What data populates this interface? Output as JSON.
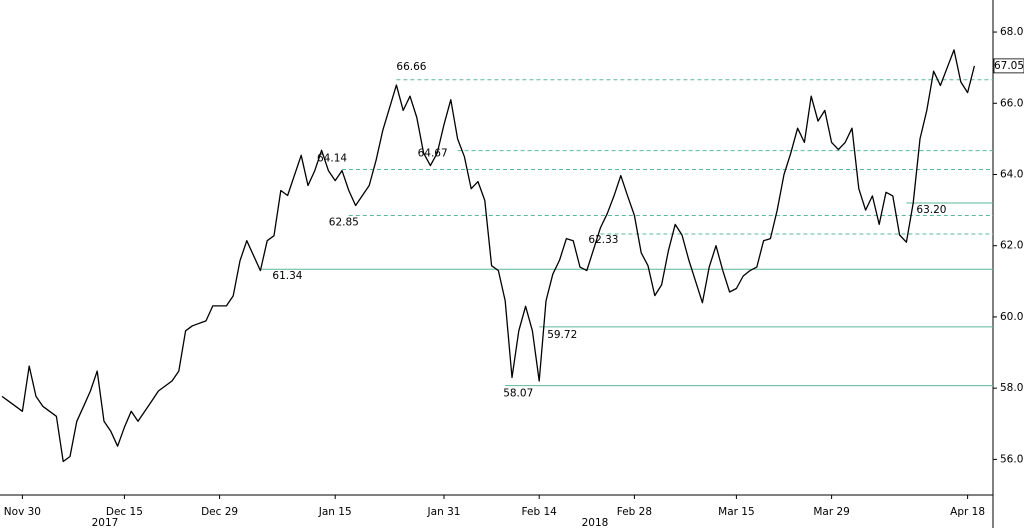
{
  "chart_data": {
    "type": "line",
    "color": "#000000",
    "level_color": "#5cb89a",
    "grid": false,
    "xlim": [
      "2017-11-27",
      "2018-04-21"
    ],
    "ylim": [
      55,
      68.9
    ],
    "xticks": [
      {
        "value": "2017-11-30",
        "label": "Nov 30"
      },
      {
        "value": "2017-12-15",
        "label": "Dec 15"
      },
      {
        "value": "2017-12-29",
        "label": "Dec 29"
      },
      {
        "value": "2018-01-15",
        "label": "Jan 15"
      },
      {
        "value": "2018-01-31",
        "label": "Jan 31"
      },
      {
        "value": "2018-02-14",
        "label": "Feb 14"
      },
      {
        "value": "2018-02-28",
        "label": "Feb 28"
      },
      {
        "value": "2018-03-15",
        "label": "Mar 15"
      },
      {
        "value": "2018-03-29",
        "label": "Mar 29"
      },
      {
        "value": "2018-04-18",
        "label": "Apr 18"
      }
    ],
    "x_year_labels": [
      "2017",
      "2018"
    ],
    "yticks": [
      {
        "value": 56,
        "label": "56.00"
      },
      {
        "value": 58,
        "label": "58.00"
      },
      {
        "value": 60,
        "label": "60.00"
      },
      {
        "value": 62,
        "label": "62.00"
      },
      {
        "value": 64,
        "label": "64.00"
      },
      {
        "value": 66,
        "label": "66.00"
      },
      {
        "value": 68,
        "label": "68.00"
      }
    ],
    "last_price": {
      "value": 67.05,
      "label": "67.05"
    },
    "levels": [
      {
        "value": 66.66,
        "start": "2018-01-24",
        "line_style": "dashed"
      },
      {
        "value": 64.67,
        "start": "2018-02-02",
        "line_style": "dashed"
      },
      {
        "value": 64.14,
        "start": "2018-01-16",
        "line_style": "dashed"
      },
      {
        "value": 62.85,
        "start": "2018-01-17",
        "line_style": "dashed"
      },
      {
        "value": 62.33,
        "start": "2018-02-23",
        "line_style": "dashed"
      },
      {
        "value": 63.2,
        "label": "63.20",
        "start": "2018-04-09",
        "line_style": "solid"
      },
      {
        "value": 61.34,
        "start": "2018-01-04",
        "line_style": "solid"
      },
      {
        "value": 59.72,
        "start": "2018-02-14",
        "line_style": "solid"
      },
      {
        "value": 58.07,
        "start": "2018-02-09",
        "line_style": "solid"
      }
    ],
    "x": [
      "2017-11-27",
      "2017-11-28",
      "2017-11-30",
      "2017-12-01",
      "2017-12-02",
      "2017-12-03",
      "2017-12-05",
      "2017-12-06",
      "2017-12-07",
      "2017-12-08",
      "2017-12-09",
      "2017-12-10",
      "2017-12-11",
      "2017-12-12",
      "2017-12-13",
      "2017-12-14",
      "2017-12-15",
      "2017-12-16",
      "2017-12-17",
      "2017-12-19",
      "2017-12-20",
      "2017-12-22",
      "2017-12-23",
      "2017-12-24",
      "2017-12-25",
      "2017-12-27",
      "2017-12-28",
      "2017-12-30",
      "2017-12-31",
      "2018-01-01",
      "2018-01-02",
      "2018-01-03",
      "2018-01-04",
      "2018-01-05",
      "2018-01-06",
      "2018-01-07",
      "2018-01-08",
      "2018-01-10",
      "2018-01-11",
      "2018-01-12",
      "2018-01-13",
      "2018-01-14",
      "2018-01-15",
      "2018-01-16",
      "2018-01-17",
      "2018-01-18",
      "2018-01-19",
      "2018-01-20",
      "2018-01-21",
      "2018-01-22",
      "2018-01-24",
      "2018-01-25",
      "2018-01-26",
      "2018-01-27",
      "2018-01-28",
      "2018-01-29",
      "2018-01-30",
      "2018-01-31",
      "2018-02-01",
      "2018-02-02",
      "2018-02-03",
      "2018-02-04",
      "2018-02-05",
      "2018-02-06",
      "2018-02-07",
      "2018-02-08",
      "2018-02-09",
      "2018-02-10",
      "2018-02-11",
      "2018-02-12",
      "2018-02-13",
      "2018-02-14",
      "2018-02-15",
      "2018-02-16",
      "2018-02-17",
      "2018-02-18",
      "2018-02-19",
      "2018-02-20",
      "2018-02-21",
      "2018-02-22",
      "2018-02-23",
      "2018-02-24",
      "2018-02-25",
      "2018-02-26",
      "2018-02-27",
      "2018-02-28",
      "2018-03-01",
      "2018-03-02",
      "2018-03-03",
      "2018-03-04",
      "2018-03-05",
      "2018-03-06",
      "2018-03-07",
      "2018-03-08",
      "2018-03-09",
      "2018-03-10",
      "2018-03-11",
      "2018-03-12",
      "2018-03-13",
      "2018-03-14",
      "2018-03-15",
      "2018-03-16",
      "2018-03-17",
      "2018-03-18",
      "2018-03-19",
      "2018-03-20",
      "2018-03-21",
      "2018-03-22",
      "2018-03-23",
      "2018-03-24",
      "2018-03-25",
      "2018-03-26",
      "2018-03-27",
      "2018-03-28",
      "2018-03-29",
      "2018-03-30",
      "2018-03-31",
      "2018-04-01",
      "2018-04-02",
      "2018-04-03",
      "2018-04-04",
      "2018-04-05",
      "2018-04-06",
      "2018-04-07",
      "2018-04-08",
      "2018-04-09",
      "2018-04-10",
      "2018-04-11",
      "2018-04-12",
      "2018-04-13",
      "2018-04-14",
      "2018-04-15",
      "2018-04-16",
      "2018-04-17",
      "2018-04-18",
      "2018-04-19"
    ],
    "values": [
      57.77,
      57.63,
      57.35,
      58.62,
      57.77,
      57.49,
      57.21,
      55.94,
      56.08,
      57.07,
      57.49,
      57.92,
      58.48,
      57.07,
      56.79,
      56.37,
      56.9,
      57.35,
      57.07,
      57.63,
      57.92,
      58.2,
      58.48,
      59.61,
      59.75,
      59.89,
      60.31,
      60.31,
      60.59,
      61.58,
      62.14,
      61.72,
      61.3,
      62.14,
      62.28,
      63.55,
      63.41,
      64.54,
      63.69,
      64.11,
      64.68,
      64.11,
      63.83,
      64.11,
      63.55,
      63.13,
      63.41,
      63.69,
      64.39,
      65.24,
      66.51,
      65.8,
      66.2,
      65.6,
      64.6,
      64.25,
      64.6,
      65.4,
      66.1,
      65.0,
      64.5,
      63.6,
      63.8,
      63.27,
      61.44,
      61.3,
      60.45,
      58.3,
      59.61,
      60.3,
      59.61,
      58.2,
      60.45,
      61.2,
      61.6,
      62.2,
      62.14,
      61.4,
      61.3,
      61.9,
      62.5,
      62.9,
      63.4,
      63.97,
      63.4,
      62.85,
      61.8,
      61.44,
      60.6,
      60.9,
      61.86,
      62.6,
      62.3,
      61.6,
      61.0,
      60.4,
      61.4,
      62.0,
      61.3,
      60.7,
      60.8,
      61.15,
      61.3,
      61.4,
      62.14,
      62.2,
      63.0,
      64.0,
      64.6,
      65.3,
      64.9,
      66.2,
      65.5,
      65.8,
      64.9,
      64.7,
      64.9,
      65.3,
      63.6,
      63.0,
      63.4,
      62.6,
      63.5,
      63.4,
      62.3,
      62.1,
      63.2,
      65.0,
      65.8,
      66.9,
      66.5,
      67.0,
      67.5,
      66.6,
      66.3,
      67.05
    ]
  }
}
